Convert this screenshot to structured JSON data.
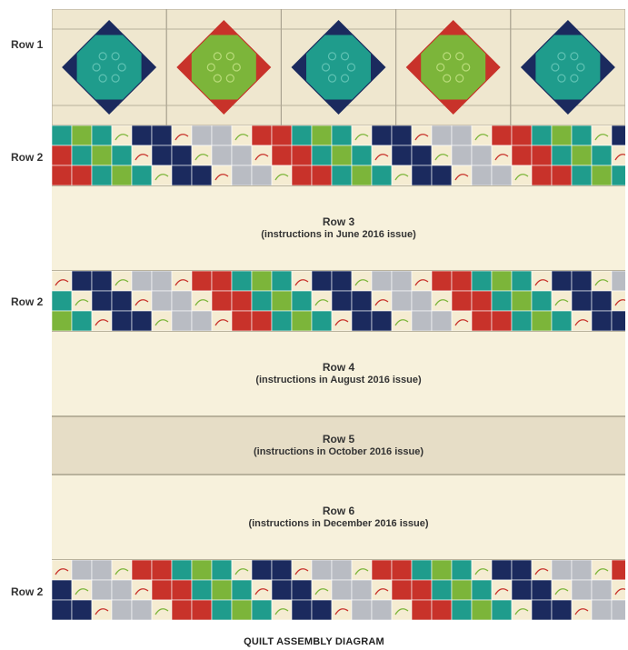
{
  "labels": {
    "row1": "Row 1",
    "row2_a": "Row 2",
    "row2_b": "Row 2",
    "row2_c": "Row 2"
  },
  "panels": {
    "row3": {
      "title": "Row 3",
      "note": "(instructions in June 2016 issue)"
    },
    "row4": {
      "title": "Row 4",
      "note": "(instructions in August 2016 issue)"
    },
    "row5": {
      "title": "Row 5",
      "note": "(instructions in October 2016 issue)"
    },
    "row6": {
      "title": "Row 6",
      "note": "(instructions in December 2016 issue)"
    }
  },
  "caption": "QUILT ASSEMBLY DIAGRAM",
  "colors": {
    "cream": "#f5ecd2",
    "teal": "#1f9c8c",
    "navy": "#1b2a5e",
    "red": "#c8322a",
    "green": "#7cb53a",
    "gray": "#b9bcc3",
    "background_print": "#efe7cf",
    "pale_panel": "#f7f1dc",
    "row5_panel": "#e6ddc6"
  },
  "block_pattern_row1": [
    "teal-star",
    "green-red-star",
    "teal-star",
    "green-red-star",
    "teal-star"
  ],
  "patch_colors_cycle": [
    "teal",
    "navy",
    "red",
    "cream",
    "gray",
    "green",
    "cream",
    "red",
    "navy",
    "cream",
    "teal",
    "gray"
  ]
}
